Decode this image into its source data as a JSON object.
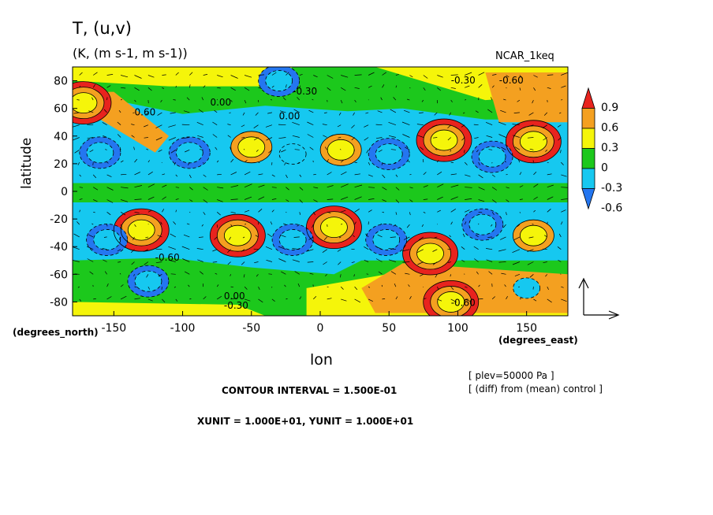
{
  "header": {
    "title": "T, (u,v)",
    "units": "(K, (m s-1, m s-1))",
    "run": "NCAR_1keq"
  },
  "axes": {
    "xlabel": "lon",
    "ylabel": "latitude",
    "x_units": "(degrees_east)",
    "y_units": "(degrees_north)"
  },
  "footer": {
    "level_note": "[ plev=50000 Pa ]",
    "diff_note": "[ (diff) from (mean) control ]",
    "contour_interval": "CONTOUR INTERVAL = 1.500E-01",
    "vector_units": "XUNIT = 1.000E+01, YUNIT = 1.000E+01"
  },
  "chart_data": {
    "type": "heatmap",
    "description_type": "filled contour map with wind vectors",
    "xlim": [
      -180,
      180
    ],
    "ylim": [
      -90,
      90
    ],
    "x_ticks": [
      -150,
      -100,
      -50,
      0,
      50,
      100,
      150
    ],
    "x_tick_labels": [
      "-150",
      "-100",
      "-50",
      "0",
      "50",
      "100",
      "150"
    ],
    "y_ticks": [
      80,
      60,
      40,
      20,
      0,
      -20,
      -40,
      -60,
      -80
    ],
    "y_tick_labels": [
      "80",
      "60",
      "40",
      "20",
      "0",
      "-20",
      "-40",
      "-60",
      "-80"
    ],
    "colorbar": {
      "levels": [
        0.9,
        0.6,
        0.3,
        0,
        -0.3,
        -0.6
      ],
      "labels": [
        "0.9",
        "0.6",
        "0.3",
        "0",
        "-0.3",
        "-0.6"
      ],
      "colors": [
        "#e8231e",
        "#f4a020",
        "#f5f50a",
        "#1cc81c",
        "#16c8f0",
        "#2476f0"
      ]
    },
    "contour_labels": [
      {
        "text": "-0.30",
        "lon": -20,
        "lat": 70
      },
      {
        "text": "-0.30",
        "lon": 95,
        "lat": 78
      },
      {
        "text": "-0.60",
        "lon": 130,
        "lat": 78
      },
      {
        "text": "0.60",
        "lon": -135,
        "lat": 55
      },
      {
        "text": "0.00",
        "lon": -80,
        "lat": 62
      },
      {
        "text": "0.00",
        "lon": -30,
        "lat": 52
      },
      {
        "text": "0.00",
        "lon": -70,
        "lat": -78
      },
      {
        "text": "-0.30",
        "lon": -70,
        "lat": -85
      },
      {
        "text": "-0.60",
        "lon": -120,
        "lat": -50
      },
      {
        "text": "-0.60",
        "lon": 95,
        "lat": -83
      }
    ],
    "features": [
      {
        "value": 0.9,
        "lon": -130,
        "lat": -28
      },
      {
        "value": 0.9,
        "lon": -60,
        "lat": -32
      },
      {
        "value": 0.9,
        "lon": 10,
        "lat": -26
      },
      {
        "value": 0.9,
        "lon": 90,
        "lat": 37
      },
      {
        "value": 0.9,
        "lon": 155,
        "lat": 36
      },
      {
        "value": 0.9,
        "lon": 80,
        "lat": -45
      },
      {
        "value": 0.9,
        "lon": 95,
        "lat": -80
      },
      {
        "value": 0.9,
        "lon": -172,
        "lat": 64
      },
      {
        "value": 0.6,
        "lon": -50,
        "lat": 32
      },
      {
        "value": 0.6,
        "lon": 15,
        "lat": 30
      },
      {
        "value": 0.6,
        "lon": 155,
        "lat": -32
      },
      {
        "value": -0.6,
        "lon": -160,
        "lat": 28
      },
      {
        "value": -0.6,
        "lon": -95,
        "lat": 28
      },
      {
        "value": -0.6,
        "lon": 50,
        "lat": 27
      },
      {
        "value": -0.6,
        "lon": 125,
        "lat": 25
      },
      {
        "value": -0.6,
        "lon": -155,
        "lat": -35
      },
      {
        "value": -0.6,
        "lon": -125,
        "lat": -65
      },
      {
        "value": -0.6,
        "lon": -20,
        "lat": -35
      },
      {
        "value": -0.6,
        "lon": 48,
        "lat": -35
      },
      {
        "value": -0.6,
        "lon": 118,
        "lat": -24
      },
      {
        "value": -0.6,
        "lon": -30,
        "lat": 80
      },
      {
        "value": -0.3,
        "lon": -20,
        "lat": 27
      },
      {
        "value": -0.3,
        "lon": 150,
        "lat": -70
      }
    ]
  }
}
